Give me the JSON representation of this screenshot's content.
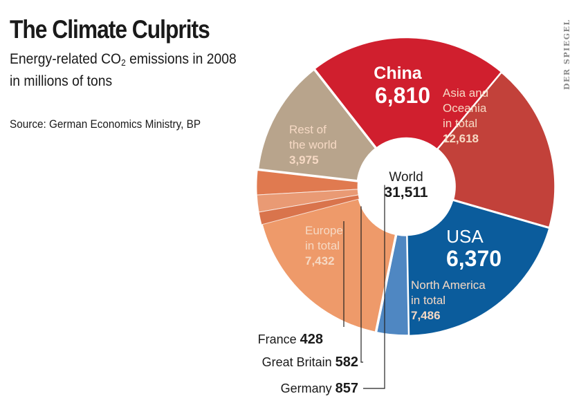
{
  "header": {
    "title": "The Climate Culprits",
    "subtitle_part1": "Energy-related CO",
    "subtitle_sub": "2",
    "subtitle_part2": " emissions in 2008",
    "subtitle_line2": "in millions of tons",
    "source": "Source: German Economics Ministry, BP",
    "credit": "DER SPIEGEL"
  },
  "colors": {
    "china": "#d01f2e",
    "asia_rest": "#c2413a",
    "usa": "#0b5c9c",
    "north_america_rest": "#4f87c2",
    "europe": "#ee9a6a",
    "rest_of_world": "#b8a48c",
    "france": "#d9744c",
    "great_britain": "#e99a74",
    "germany": "#e07a50",
    "separator": "#ffffff",
    "text_light": "#f6d9c4",
    "text_dark": "#1a1a1a"
  },
  "chart_data": {
    "type": "pie",
    "subtype": "donut",
    "unit": "millions of tons",
    "center": {
      "label": "World",
      "value": "31,511",
      "total": 31511
    },
    "regions": [
      {
        "name": "Asia and Oceania in total",
        "label_lines": [
          "Asia and",
          "Oceania",
          "in total"
        ],
        "value": 12618,
        "value_label": "12,618",
        "color": "#c2413a",
        "sub": [
          {
            "name": "China",
            "value": 6810,
            "value_label": "6,810",
            "color": "#d01f2e"
          }
        ]
      },
      {
        "name": "North America in total",
        "label_lines": [
          "North America",
          "in total"
        ],
        "value": 7486,
        "value_label": "7,486",
        "color": "#4f87c2",
        "sub": [
          {
            "name": "USA",
            "value": 6370,
            "value_label": "6,370",
            "color": "#0b5c9c"
          }
        ]
      },
      {
        "name": "Europe in total",
        "label_lines": [
          "Europe",
          "in total"
        ],
        "value": 7432,
        "value_label": "7,432",
        "color": "#ee9a6a",
        "sub": [
          {
            "name": "Germany",
            "value": 857,
            "value_label": "857",
            "color": "#e07a50"
          },
          {
            "name": "Great Britain",
            "value": 582,
            "value_label": "582",
            "color": "#e99a74"
          },
          {
            "name": "France",
            "value": 428,
            "value_label": "428",
            "color": "#d9744c"
          }
        ]
      },
      {
        "name": "Rest of the world",
        "label_lines": [
          "Rest of",
          "the world"
        ],
        "value": 3975,
        "value_label": "3,975",
        "color": "#b8a48c",
        "sub": []
      }
    ]
  }
}
